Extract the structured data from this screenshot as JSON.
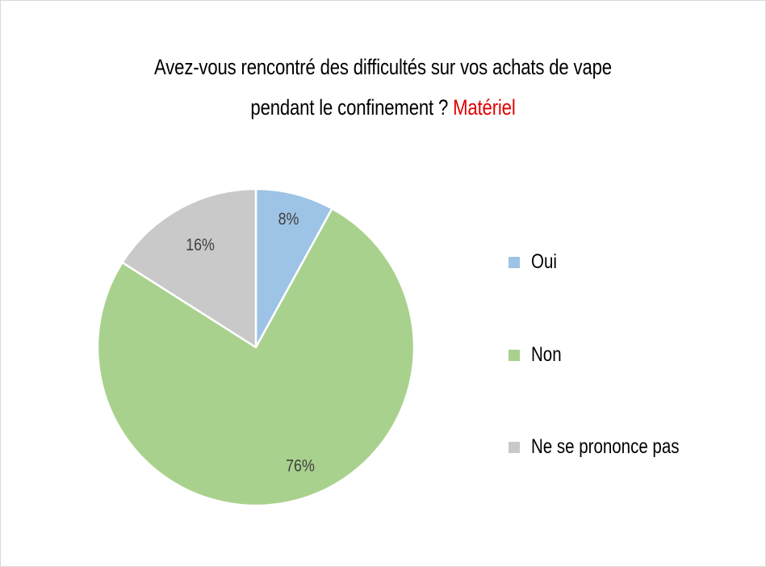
{
  "chart_data": {
    "type": "pie",
    "title_main": "Avez-vous rencontré des difficultés sur vos achats de vape",
    "title_line2": "pendant le confinement ?",
    "title_accent": "Matériel",
    "slices": [
      {
        "label": "Oui",
        "value": 8,
        "value_label": "8%",
        "color": "#9dc3e6"
      },
      {
        "label": "Non",
        "value": 76,
        "value_label": "76%",
        "color": "#a9d18e"
      },
      {
        "label": "Ne se prononce pas",
        "value": 16,
        "value_label": "16%",
        "color": "#c9c9c9"
      }
    ],
    "legend_position": "right"
  }
}
